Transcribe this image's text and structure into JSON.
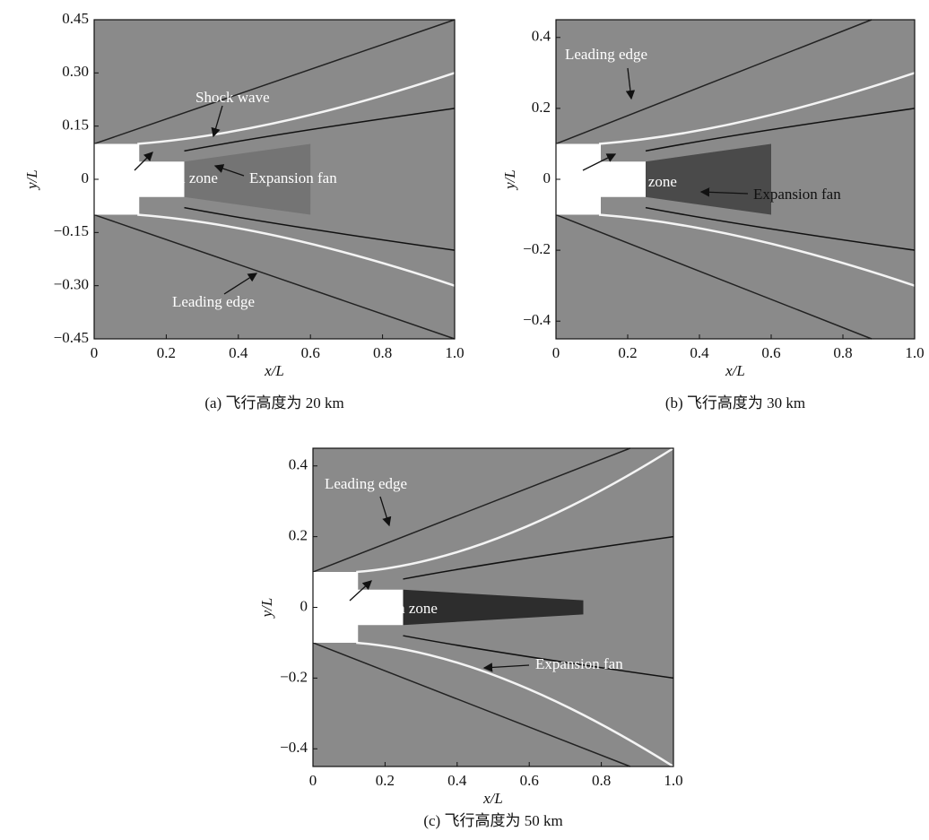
{
  "panels": [
    {
      "xlim": [
        0,
        1
      ],
      "ylim": [
        -0.45,
        0.45
      ],
      "xticks": [
        0,
        0.2,
        0.4,
        0.6,
        0.8,
        {
          "value": 1,
          "label": "1.0"
        }
      ],
      "yticks": [
        {
          "value": 0.45,
          "label": "0.45"
        },
        {
          "value": 0.3,
          "label": "0.30"
        },
        {
          "value": 0.15,
          "label": "0.15"
        },
        0,
        {
          "value": -0.15,
          "label": "−0.15"
        },
        {
          "value": -0.3,
          "label": "−0.30"
        },
        {
          "value": -0.45,
          "label": "−0.45"
        }
      ],
      "xlabel": "x/L",
      "ylabel": "y/L",
      "caption": "(a) 飞行高度为 20 km",
      "annotations": [
        "Shock wave",
        "Recirculation zone",
        "Expansion fan",
        "Leading edge"
      ]
    },
    {
      "xlim": [
        0,
        1
      ],
      "ylim": [
        -0.45,
        0.45
      ],
      "xticks": [
        0,
        0.2,
        0.4,
        0.6,
        0.8,
        {
          "value": 1,
          "label": "1.0"
        }
      ],
      "yticks": [
        0.4,
        0.2,
        0,
        {
          "value": -0.2,
          "label": "−0.2"
        },
        {
          "value": -0.4,
          "label": "−0.4"
        }
      ],
      "xlabel": "x/L",
      "ylabel": "y/L",
      "caption": "(b) 飞行高度为 30 km",
      "annotations": [
        "Leading edge",
        "Recirculation zone",
        "Expansion fan"
      ]
    },
    {
      "xlim": [
        0,
        1
      ],
      "ylim": [
        -0.45,
        0.45
      ],
      "xticks": [
        0,
        0.2,
        0.4,
        0.6,
        0.8,
        {
          "value": 1,
          "label": "1.0"
        }
      ],
      "yticks": [
        0.4,
        0.2,
        0,
        {
          "value": -0.2,
          "label": "−0.2"
        },
        {
          "value": -0.4,
          "label": "−0.4"
        }
      ],
      "xlabel": "x/L",
      "ylabel": "y/L",
      "caption": "(c) 飞行高度为 50 km",
      "annotations": [
        "Leading edge",
        "Recirculation zone",
        "Expansion fan"
      ]
    }
  ]
}
